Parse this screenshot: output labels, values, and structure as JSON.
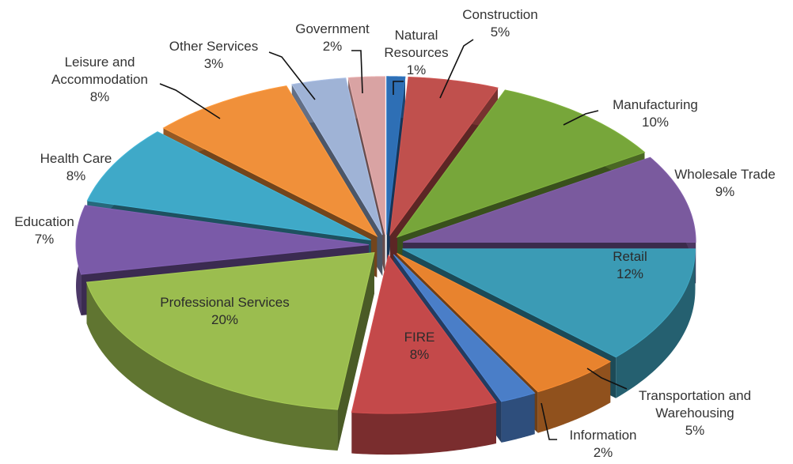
{
  "chart_data": {
    "type": "pie",
    "style": "exploded-3d",
    "slices": [
      {
        "name": "Natural Resources",
        "value": 1,
        "pct_label": "1%",
        "color": "#2e6fb5"
      },
      {
        "name": "Construction",
        "value": 5,
        "pct_label": "5%",
        "color": "#c0504d"
      },
      {
        "name": "Manufacturing",
        "value": 10,
        "pct_label": "10%",
        "color": "#77a63a"
      },
      {
        "name": "Wholesale Trade",
        "value": 9,
        "pct_label": "9%",
        "color": "#7a5a9e"
      },
      {
        "name": "Retail",
        "value": 12,
        "pct_label": "12%",
        "color": "#3b9bb5"
      },
      {
        "name": "Transportation and Warehousing",
        "value": 5,
        "pct_label": "5%",
        "color": "#e8832e"
      },
      {
        "name": "Information",
        "value": 2,
        "pct_label": "2%",
        "color": "#4a7ec8"
      },
      {
        "name": "FIRE",
        "value": 8,
        "pct_label": "8%",
        "color": "#c4494a"
      },
      {
        "name": "Professional Services",
        "value": 20,
        "pct_label": "20%",
        "color": "#9bbd4f"
      },
      {
        "name": "Education",
        "value": 7,
        "pct_label": "7%",
        "color": "#7a5aa8"
      },
      {
        "name": "Health Care",
        "value": 8,
        "pct_label": "8%",
        "color": "#3fa9c8"
      },
      {
        "name": "Leisure and Accommodation",
        "value": 8,
        "pct_label": "8%",
        "color": "#f0903a"
      },
      {
        "name": "Other Services",
        "value": 3,
        "pct_label": "3%",
        "color": "#9fb3d6"
      },
      {
        "name": "Government",
        "value": 2,
        "pct_label": "2%",
        "color": "#d9a3a3"
      }
    ],
    "labels": [
      {
        "lines": [
          "Construction",
          "5%"
        ]
      },
      {
        "lines": [
          "Natural",
          "Resources",
          "1%"
        ]
      },
      {
        "lines": [
          "Government",
          "2%"
        ]
      },
      {
        "lines": [
          "Other Services",
          "3%"
        ]
      },
      {
        "lines": [
          "Leisure and",
          "Accommodation",
          "8%"
        ]
      },
      {
        "lines": [
          "Health Care",
          "8%"
        ]
      },
      {
        "lines": [
          "Education",
          "7%"
        ]
      },
      {
        "lines": [
          "Manufacturing",
          "10%"
        ]
      },
      {
        "lines": [
          "Wholesale Trade",
          "9%"
        ]
      },
      {
        "lines": [
          "Retail",
          "12%"
        ]
      },
      {
        "lines": [
          "Transportation and",
          "Warehousing",
          "5%"
        ]
      },
      {
        "lines": [
          "Information",
          "2%"
        ]
      },
      {
        "lines": [
          "FIRE",
          "8%"
        ]
      },
      {
        "lines": [
          "Professional Services",
          "20%"
        ]
      }
    ]
  }
}
